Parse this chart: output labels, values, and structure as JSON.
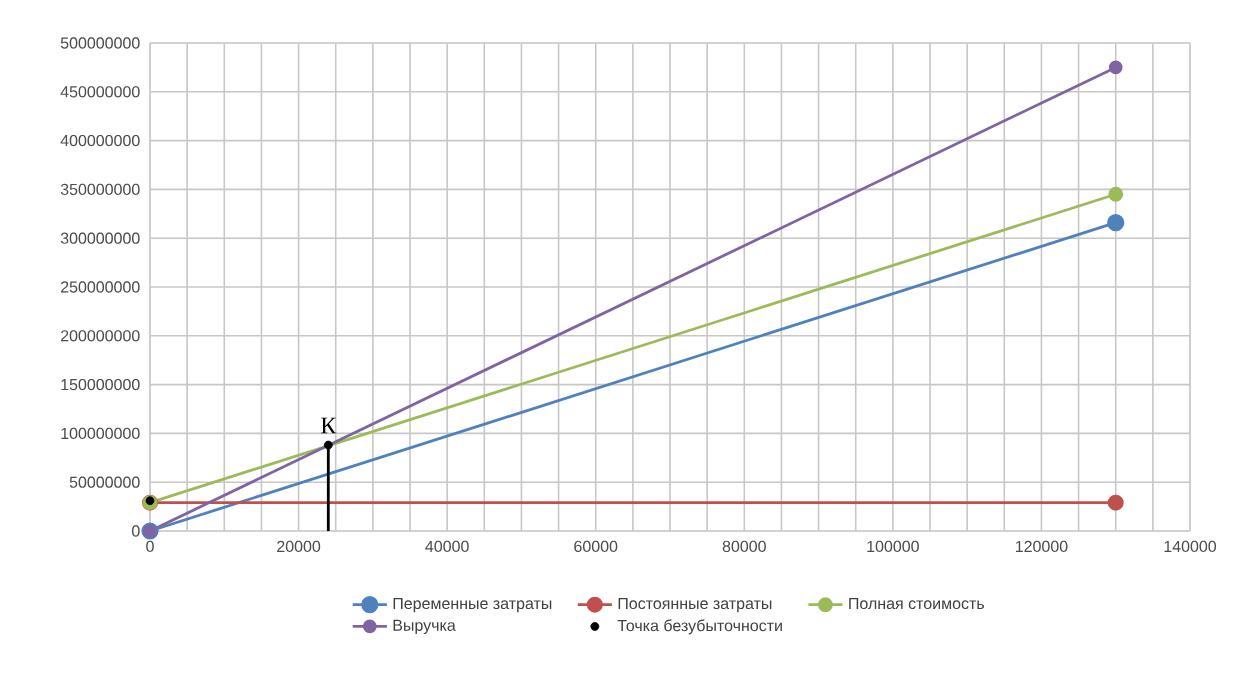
{
  "chart_data": {
    "type": "line",
    "series": [
      {
        "name": "Переменные затраты",
        "color": "#4f81bd",
        "x": [
          0,
          130000
        ],
        "values": [
          0,
          316000000
        ]
      },
      {
        "name": "Постоянные затраты",
        "color": "#c0504d",
        "x": [
          0,
          130000
        ],
        "values": [
          29000000,
          29000000
        ]
      },
      {
        "name": "Полная стоимость",
        "color": "#9bbb59",
        "x": [
          0,
          130000
        ],
        "values": [
          29000000,
          345000000
        ]
      },
      {
        "name": "Выручка",
        "color": "#8064a2",
        "x": [
          0,
          130000
        ],
        "values": [
          0,
          475000000
        ]
      },
      {
        "name": "Точка безубыточности",
        "type": "scatter",
        "color": "#000000",
        "x": [
          0,
          24000
        ],
        "values": [
          31000000,
          88000000
        ]
      },
      {
        "type": "line",
        "color": "#000000",
        "x": [
          24000,
          24000
        ],
        "values": [
          0,
          88000000
        ],
        "marker": "none"
      }
    ],
    "annotations": [
      {
        "text": "К",
        "x": 24000,
        "y": 88000000
      }
    ],
    "xlim": [
      0,
      140000
    ],
    "xticks": [
      0,
      20000,
      40000,
      60000,
      80000,
      100000,
      120000,
      140000
    ],
    "ylim": [
      0,
      500000000
    ],
    "yticks": [
      0,
      50000000,
      100000000,
      150000000,
      200000000,
      250000000,
      300000000,
      350000000,
      400000000,
      450000000,
      500000000
    ],
    "grid": true,
    "legend": "bottom",
    "marker": "circle"
  }
}
